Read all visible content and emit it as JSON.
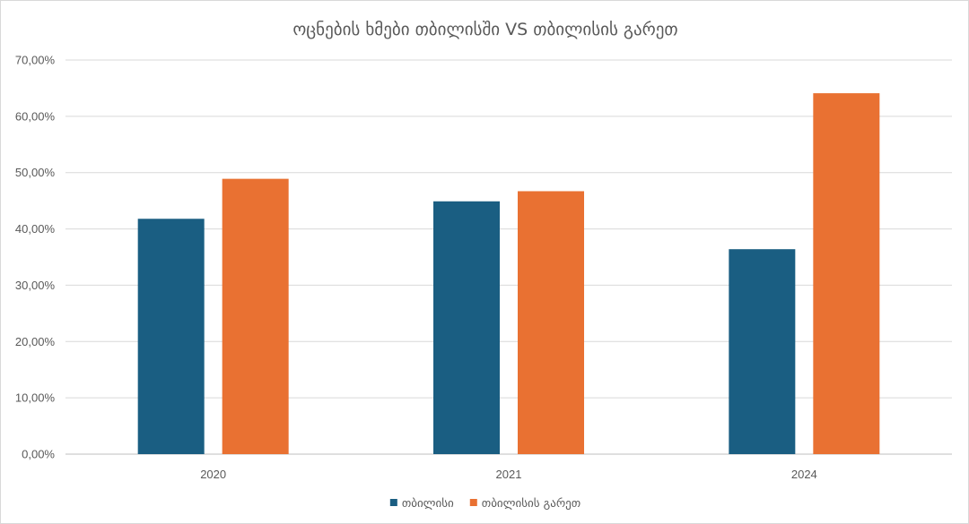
{
  "chart_data": {
    "type": "bar",
    "title": "ოცნების ხმები თბილისში VS თბილისის გარეთ",
    "categories": [
      "2020",
      "2021",
      "2024"
    ],
    "series": [
      {
        "name": "თბილისი",
        "color": "#1a5e82",
        "values": [
          41.8,
          44.9,
          36.4
        ]
      },
      {
        "name": "თბილისის გარეთ",
        "color": "#e97132",
        "values": [
          48.9,
          46.7,
          64.1
        ]
      }
    ],
    "ylim": [
      0,
      70
    ],
    "yticks": [
      0,
      10,
      20,
      30,
      40,
      50,
      60,
      70
    ],
    "ytick_labels": [
      "0,00%",
      "10,00%",
      "20,00%",
      "30,00%",
      "40,00%",
      "50,00%",
      "60,00%",
      "70,00%"
    ],
    "grid": true,
    "legend_position": "bottom"
  }
}
